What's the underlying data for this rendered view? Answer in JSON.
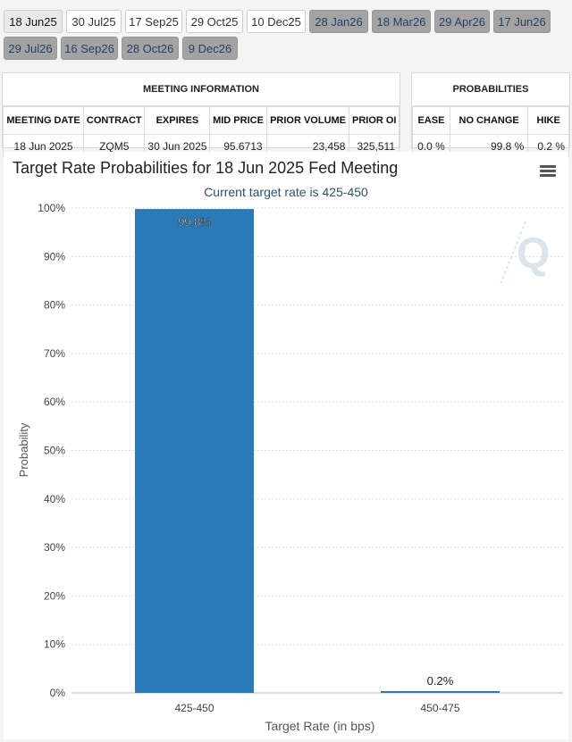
{
  "tabs": [
    [
      "18 Jun25",
      "30 Jul25",
      "17 Sep25",
      "29 Oct25",
      "10 Dec25",
      "28 Jan26",
      "18 Mar26",
      "29 Apr26",
      "17 Jun26"
    ],
    [
      "29 Jul26",
      "16 Sep26",
      "28 Oct26",
      "9 Dec26"
    ]
  ],
  "meeting": {
    "heading": "MEETING INFORMATION",
    "headers": [
      "MEETING DATE",
      "CONTRACT",
      "EXPIRES",
      "MID PRICE",
      "PRIOR VOLUME",
      "PRIOR OI"
    ],
    "row": [
      "18 Jun 2025",
      "ZQM5",
      "30 Jun 2025",
      "95.6713",
      "23,458",
      "325,511"
    ]
  },
  "probabilities": {
    "heading": "PROBABILITIES",
    "headers": [
      "EASE",
      "NO CHANGE",
      "HIKE"
    ],
    "row": [
      "0.0 %",
      "99.8 %",
      "0.2 %"
    ]
  },
  "chart_data": {
    "type": "bar",
    "title": "Target Rate Probabilities for 18 Jun 2025 Fed Meeting",
    "subtitle": "Current target rate is 425-450",
    "xlabel": "Target Rate (in bps)",
    "ylabel": "Probability",
    "categories": [
      "425-450",
      "450-475"
    ],
    "values": [
      99.8,
      0.2
    ],
    "data_labels": [
      "99.8%",
      "0.2%"
    ],
    "ylim": [
      0,
      100
    ],
    "yticks": [
      "0%",
      "10%",
      "20%",
      "30%",
      "40%",
      "50%",
      "60%",
      "70%",
      "80%",
      "90%",
      "100%"
    ],
    "grid": true,
    "bar_color": "#2a7ab9"
  }
}
